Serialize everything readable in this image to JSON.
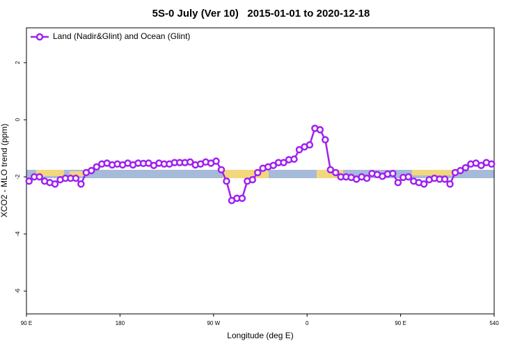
{
  "chart_data": {
    "type": "line",
    "title": "5S-0 July (Ver 10)   2015-01-01 to 2020-12-18",
    "xlabel": "Longitude (deg E)",
    "ylabel": "XCO2 - MLO trend (ppm)",
    "xlim": [
      90,
      540
    ],
    "ylim": [
      -6.8,
      3.22
    ],
    "xticks": [
      {
        "value": 90,
        "label": "90 E"
      },
      180,
      {
        "value": 270,
        "label": "90 W"
      },
      {
        "value": 360,
        "label": "0"
      },
      {
        "value": 450,
        "label": "90 E"
      },
      540
    ],
    "yticks": [
      2,
      0,
      -2,
      -4,
      -6
    ],
    "legend": "top-left",
    "x": [
      92.5,
      97.5,
      102.5,
      107.5,
      112.5,
      117.5,
      122.5,
      127.5,
      132.5,
      137.5,
      142.5,
      147.5,
      152.5,
      157.5,
      162.5,
      167.5,
      172.5,
      177.5,
      182.5,
      187.5,
      192.5,
      197.5,
      202.5,
      207.5,
      212.5,
      217.5,
      222.5,
      227.5,
      232.5,
      237.5,
      242.5,
      247.5,
      252.5,
      257.5,
      262.5,
      267.5,
      272.5,
      277.5,
      282.5,
      287.5,
      292.5,
      297.5,
      302.5,
      307.5,
      312.5,
      317.5,
      322.5,
      327.5,
      332.5,
      337.5,
      342.5,
      347.5,
      352.5,
      357.5,
      362.5,
      367.5,
      372.5,
      377.5,
      382.5,
      387.5,
      392.5,
      397.5,
      402.5,
      407.5,
      412.5,
      417.5,
      422.5,
      427.5,
      432.5,
      437.5,
      442.5,
      447.5,
      452.5,
      457.5,
      462.5,
      467.5,
      472.5,
      477.5,
      482.5,
      487.5,
      492.5,
      497.5,
      502.5,
      507.5,
      512.5,
      517.5,
      522.5,
      527.5,
      532.5,
      537.5
    ],
    "series": [
      {
        "name": "Land (Nadir&Glint) and Ocean (Glint)",
        "color": "#a020f0",
        "values": [
          -2.15,
          -2.0,
          -2.0,
          -2.15,
          -2.2,
          -2.25,
          -2.1,
          -2.05,
          -2.05,
          -2.05,
          -2.25,
          -1.85,
          -1.78,
          -1.65,
          -1.55,
          -1.52,
          -1.58,
          -1.55,
          -1.58,
          -1.52,
          -1.58,
          -1.52,
          -1.53,
          -1.52,
          -1.6,
          -1.52,
          -1.55,
          -1.55,
          -1.5,
          -1.5,
          -1.5,
          -1.48,
          -1.58,
          -1.55,
          -1.48,
          -1.52,
          -1.45,
          -1.75,
          -2.15,
          -2.83,
          -2.75,
          -2.75,
          -2.15,
          -2.1,
          -1.85,
          -1.7,
          -1.65,
          -1.6,
          -1.5,
          -1.5,
          -1.4,
          -1.38,
          -1.05,
          -0.95,
          -0.88,
          -0.3,
          -0.35,
          -0.7,
          -1.75,
          -1.85,
          -2.0,
          -2.0,
          -2.02,
          -2.08,
          -2.0,
          -2.05,
          -1.88,
          -1.92,
          -1.98,
          -1.9,
          -1.88,
          -2.2,
          -2.02,
          -2.0,
          -2.15,
          -2.2,
          -2.25,
          -2.1,
          -2.05,
          -2.08,
          -2.08,
          -2.25,
          -1.85,
          -1.78,
          -1.68,
          -1.55,
          -1.52,
          -1.6,
          -1.5,
          -1.55
        ]
      }
    ]
  }
}
